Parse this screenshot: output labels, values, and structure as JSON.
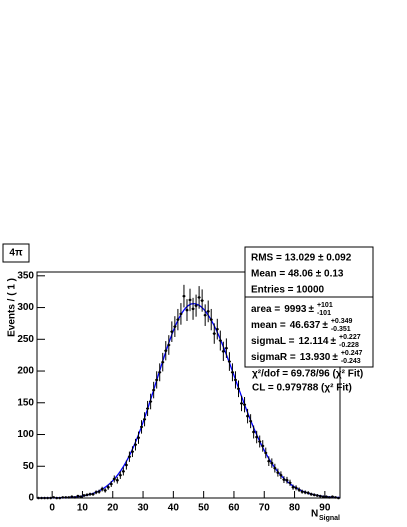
{
  "chart_data": {
    "type": "scatter",
    "title": "4π",
    "ylabel": "Events / ( 1 )",
    "xlabel": "N",
    "xlabel_sub": "Signal",
    "xlim": [
      -5,
      95
    ],
    "xticks": [
      0,
      10,
      20,
      30,
      40,
      50,
      60,
      70,
      80,
      90
    ],
    "ylim": [
      0,
      356
    ],
    "yticks": [
      0,
      50,
      100,
      150,
      200,
      250,
      300,
      350
    ],
    "color": "#000000",
    "x": [
      -4.5,
      -3.5,
      -2.5,
      -1.5,
      -0.5,
      0.5,
      1.5,
      2.5,
      3.5,
      4.5,
      5.5,
      6.5,
      7.5,
      8.5,
      9.5,
      10.5,
      11.5,
      12.5,
      13.5,
      14.5,
      15.5,
      16.5,
      17.5,
      18.5,
      19.5,
      20.5,
      21.5,
      22.5,
      23.5,
      24.5,
      25.5,
      26.5,
      27.5,
      28.5,
      29.5,
      30.5,
      31.5,
      32.5,
      33.5,
      34.5,
      35.5,
      36.5,
      37.5,
      38.5,
      39.5,
      40.5,
      41.5,
      42.5,
      43.5,
      44.5,
      45.5,
      46.5,
      47.5,
      48.5,
      49.5,
      50.5,
      51.5,
      52.5,
      53.5,
      54.5,
      55.5,
      56.5,
      57.5,
      58.5,
      59.5,
      60.5,
      61.5,
      62.5,
      63.5,
      64.5,
      65.5,
      66.5,
      67.5,
      68.5,
      69.5,
      70.5,
      71.5,
      72.5,
      73.5,
      74.5,
      75.5,
      76.5,
      77.5,
      78.5,
      79.5,
      80.5,
      81.5,
      82.5,
      83.5,
      84.5,
      85.5,
      86.5,
      87.5,
      88.5,
      89.5,
      90.5,
      91.5,
      92.5,
      93.5,
      94.5
    ],
    "values": [
      0,
      0,
      0,
      0,
      0,
      1,
      0,
      0,
      1,
      1,
      1,
      2,
      1,
      3,
      2,
      4,
      5,
      6,
      6,
      9,
      10,
      14,
      12,
      17,
      22,
      30,
      28,
      36,
      42,
      52,
      65,
      73,
      84,
      95,
      112,
      124,
      141,
      152,
      170,
      186,
      198,
      214,
      232,
      241,
      262,
      270,
      281,
      290,
      318,
      296,
      312,
      298,
      303,
      316,
      311,
      288,
      294,
      281,
      259,
      266,
      248,
      231,
      236,
      215,
      198,
      186,
      172,
      149,
      147,
      129,
      121,
      104,
      96,
      89,
      82,
      71,
      58,
      55,
      47,
      40,
      36,
      29,
      28,
      24,
      17,
      16,
      13,
      10,
      9,
      8,
      6,
      5,
      4,
      3,
      2,
      2,
      1,
      2,
      1,
      0
    ],
    "errors": [
      0,
      0,
      0,
      0,
      0,
      1,
      0,
      0,
      1,
      1,
      1,
      1.4,
      1,
      1.7,
      1.4,
      2,
      2.2,
      2.4,
      2.4,
      3,
      3.2,
      3.7,
      3.5,
      4.1,
      4.7,
      5.5,
      5.3,
      6,
      6.5,
      7.2,
      8.1,
      8.5,
      9.2,
      9.7,
      10.6,
      11.1,
      11.9,
      12.3,
      13,
      13.6,
      14.1,
      14.6,
      15.2,
      15.5,
      16.2,
      16.4,
      16.8,
      17,
      17.8,
      17.2,
      17.7,
      17.3,
      17.4,
      17.8,
      17.6,
      17,
      17.1,
      16.8,
      16.1,
      16.3,
      15.7,
      15.2,
      15.4,
      14.7,
      14.1,
      13.6,
      13.1,
      12.2,
      12.1,
      11.4,
      11,
      10.2,
      9.8,
      9.4,
      9.1,
      8.4,
      7.6,
      7.4,
      6.9,
      6.3,
      6,
      5.4,
      5.3,
      4.9,
      4.1,
      4,
      3.6,
      3.2,
      3,
      2.8,
      2.4,
      2.2,
      2,
      1.7,
      1.4,
      1.4,
      1,
      1.4,
      1,
      0
    ],
    "stats": [
      "RMS = 13.029 ± 0.092",
      "Mean = 48.06 ± 0.13",
      "Entries = 10000"
    ],
    "fit": {
      "color": "#0000ff",
      "pm": "±",
      "params": [
        {
          "label": "area =",
          "value": 9993,
          "up": "+101",
          "down": "-101"
        },
        {
          "label": "mean =",
          "value": 46.637,
          "up": "+0.349",
          "down": "-0.351"
        },
        {
          "label": "sigmaL =",
          "value": 12.114,
          "up": "+0.227",
          "down": "-0.228"
        },
        {
          "label": "sigmaR =",
          "value": {
            "value": 13.93,
            "label": "13.930"
          },
          "up": "+0.247",
          "down": "-0.243"
        }
      ],
      "lines": [
        "χ²/dof = 69.78/96 (χ² Fit)",
        "CL = 0.979788 (χ² Fit)"
      ]
    }
  }
}
